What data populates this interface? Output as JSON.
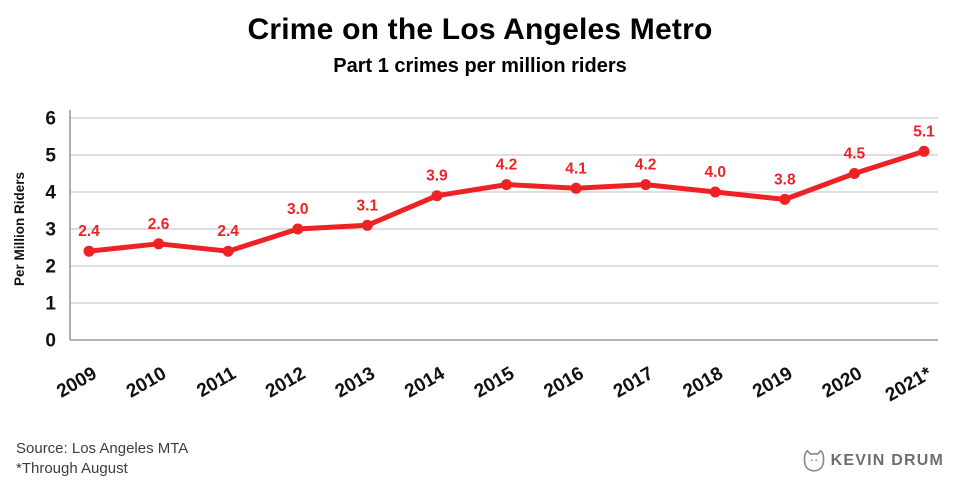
{
  "footer": {
    "source": "Source: Los Angeles MTA",
    "note": "*Through August"
  },
  "logo": {
    "icon": "cat-head-icon",
    "text": "KEVIN DRUM"
  },
  "colors": {
    "line": "#ee2224",
    "point_label": "#ee2224",
    "grid": "#c9c9c9",
    "axis": "#9a9a9a",
    "tick_text": "#111111"
  },
  "chart_data": {
    "type": "line",
    "title": "Crime on the Los Angeles Metro",
    "subtitle": "Part 1 crimes per million riders",
    "categories": [
      "2009",
      "2010",
      "2011",
      "2012",
      "2013",
      "2014",
      "2015",
      "2016",
      "2017",
      "2018",
      "2019",
      "2020",
      "2021*"
    ],
    "values": [
      2.4,
      2.6,
      2.4,
      3.0,
      3.1,
      3.9,
      4.2,
      4.1,
      4.2,
      4.0,
      3.8,
      4.5,
      5.1
    ],
    "xlabel": "",
    "ylabel": "Per Million Riders",
    "ylim": [
      0,
      6
    ],
    "yticks": [
      0,
      1,
      2,
      3,
      4,
      5,
      6
    ],
    "grid": true,
    "legend": "none",
    "point_labels_shown": true
  }
}
